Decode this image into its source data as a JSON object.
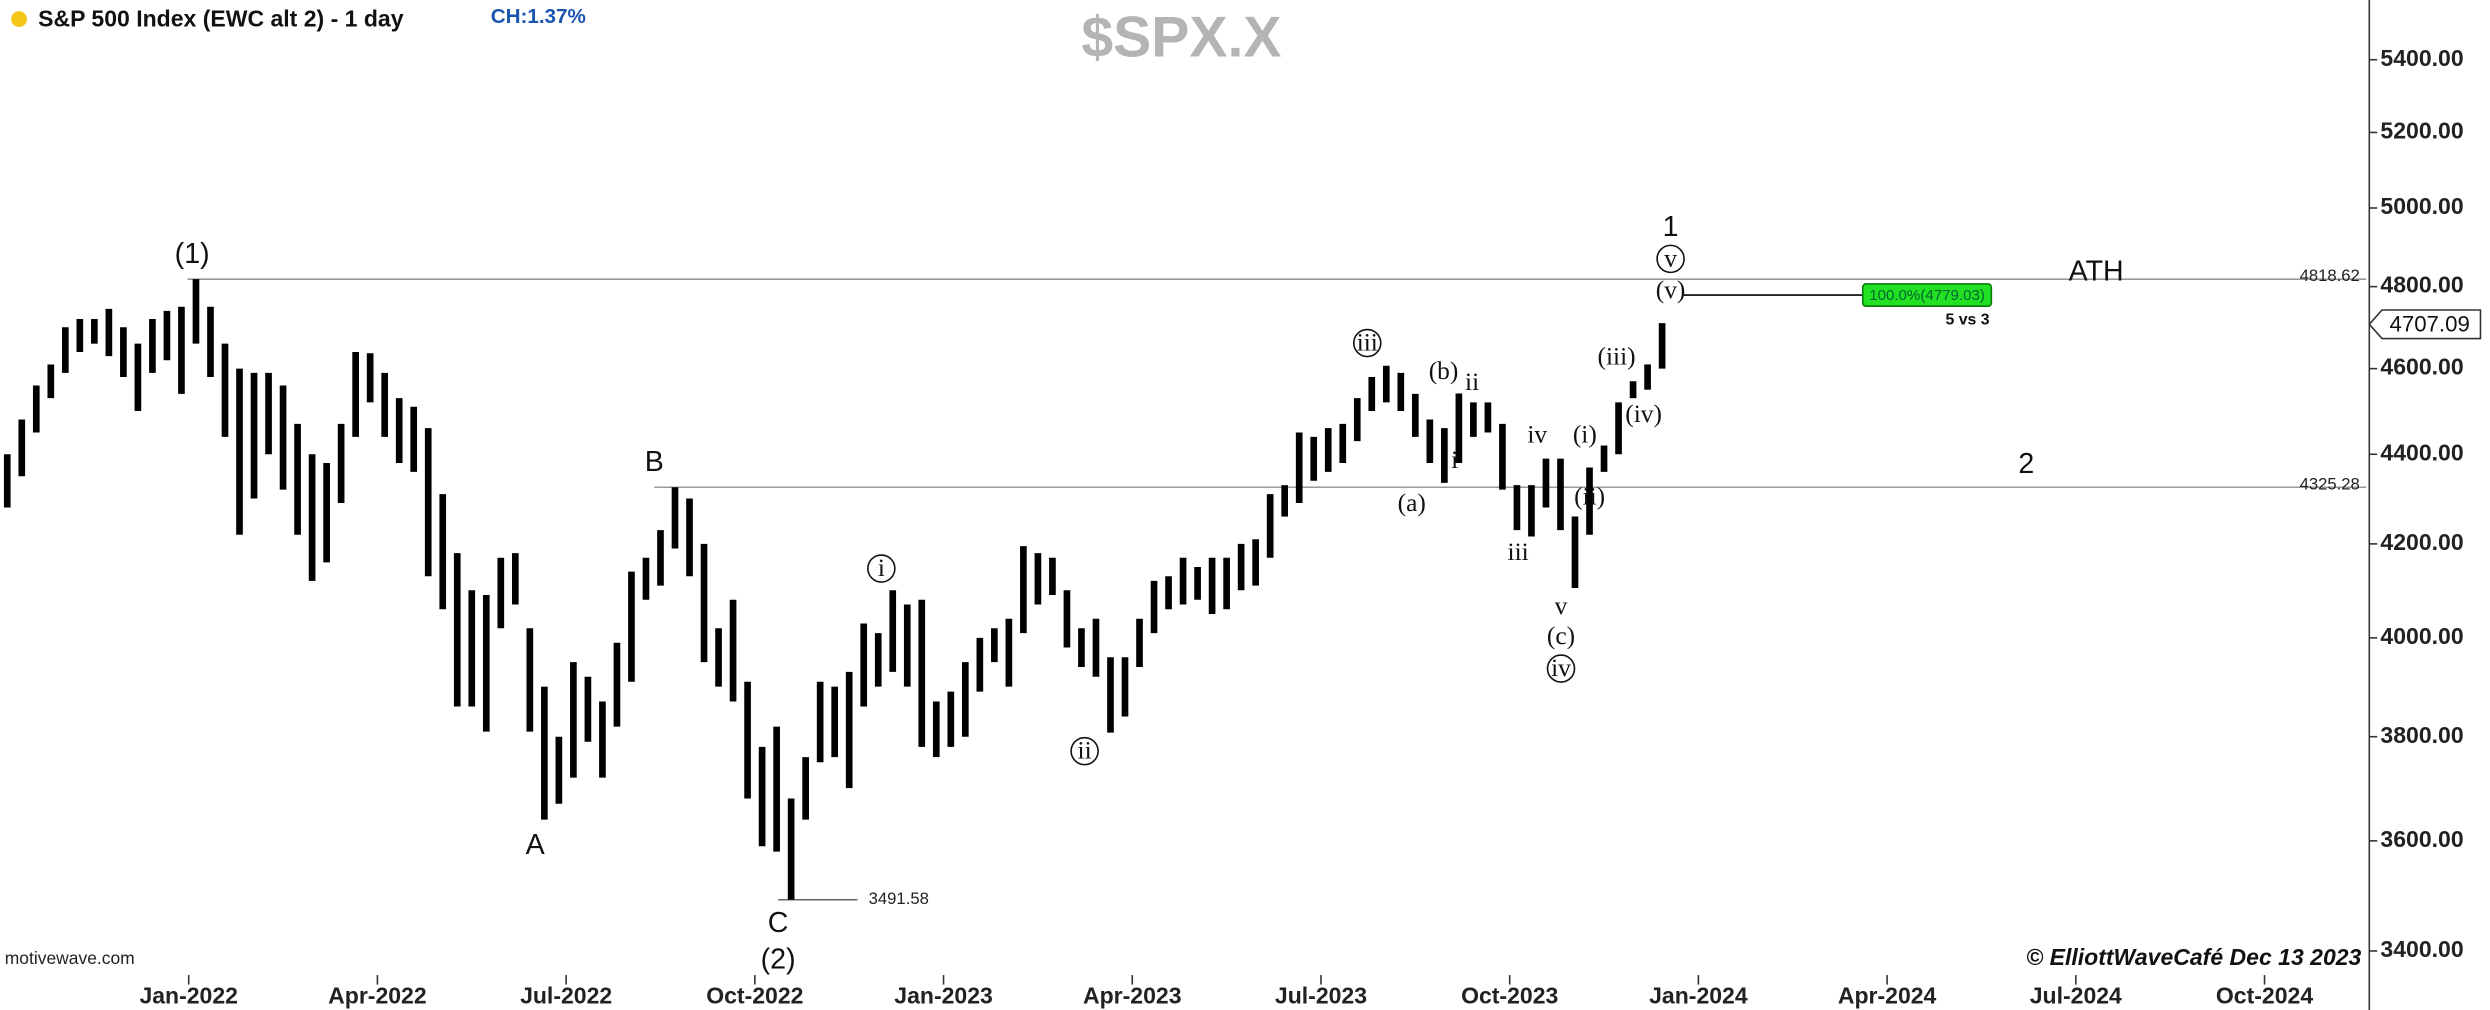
{
  "header": {
    "title": "S&P 500 Index (EWC alt 2) - 1 day",
    "change": "CH:1.37%",
    "symbol": "$SPX.X",
    "source": "motivewave.com",
    "credit": "© ElliottWaveCafé Dec 13 2023"
  },
  "chart_data": {
    "type": "hilo",
    "color": "#000000",
    "log_scale": true,
    "low": [
      4280,
      4350,
      4450,
      4530,
      4590,
      4640,
      4660,
      4630,
      4580,
      4500,
      4590,
      4620,
      4540,
      4660,
      4580,
      4440,
      4220,
      4300,
      4400,
      4320,
      4220,
      4120,
      4160,
      4290,
      4440,
      4520,
      4440,
      4380,
      4360,
      4130,
      4060,
      3860,
      3860,
      3810,
      4020,
      4070,
      3810,
      3640,
      3670,
      3720,
      3790,
      3720,
      3820,
      3910,
      4080,
      4110,
      4190,
      4130,
      3950,
      3900,
      3870,
      3680,
      3590,
      3580,
      3491.58,
      3640,
      3750,
      3760,
      3700,
      3860,
      3900,
      3930,
      3900,
      3780,
      3760,
      3780,
      3800,
      3890,
      3950,
      3900,
      4010,
      4070,
      4090,
      3980,
      3940,
      3920,
      3808,
      3840,
      3940,
      4010,
      4060,
      4070,
      4080,
      4050,
      4060,
      4100,
      4110,
      4170,
      4260,
      4290,
      4340,
      4360,
      4380,
      4430,
      4500,
      4520,
      4500,
      4440,
      4380,
      4335,
      4380,
      4440,
      4450,
      4320,
      4230,
      4216,
      4280,
      4230,
      4105,
      4220,
      4360,
      4400,
      4530,
      4550,
      4600
    ],
    "high": [
      4400,
      4480,
      4560,
      4610,
      4700,
      4720,
      4720,
      4745,
      4700,
      4660,
      4720,
      4740,
      4750,
      4818.62,
      4750,
      4660,
      4600,
      4590,
      4590,
      4560,
      4470,
      4400,
      4380,
      4470,
      4640,
      4637,
      4590,
      4530,
      4510,
      4460,
      4310,
      4180,
      4100,
      4090,
      4170,
      4180,
      4020,
      3900,
      3800,
      3950,
      3920,
      3870,
      3990,
      4140,
      4170,
      4230,
      4325.28,
      4300,
      4200,
      4020,
      4080,
      3910,
      3780,
      3820,
      3680,
      3760,
      3910,
      3900,
      3930,
      4030,
      4010,
      4100,
      4070,
      4080,
      3870,
      3890,
      3950,
      4000,
      4020,
      4040,
      4195,
      4180,
      4170,
      4100,
      4020,
      4040,
      3960,
      3960,
      4040,
      4120,
      4130,
      4170,
      4150,
      4170,
      4170,
      4200,
      4210,
      4310,
      4330,
      4450,
      4440,
      4460,
      4470,
      4530,
      4580,
      4607,
      4590,
      4540,
      4480,
      4460,
      4541,
      4520,
      4520,
      4470,
      4330,
      4330,
      4390,
      4390,
      4260,
      4370,
      4420,
      4520,
      4570,
      4610,
      4710
    ],
    "xlim": [
      0,
      163
    ],
    "xticks": [
      {
        "value": 13,
        "label": "Jan-2022"
      },
      {
        "value": 26,
        "label": "Apr-2022"
      },
      {
        "value": 39,
        "label": "Jul-2022"
      },
      {
        "value": 52,
        "label": "Oct-2022"
      },
      {
        "value": 65,
        "label": "Jan-2023"
      },
      {
        "value": 78,
        "label": "Apr-2023"
      },
      {
        "value": 91,
        "label": "Jul-2023"
      },
      {
        "value": 104,
        "label": "Oct-2023"
      },
      {
        "value": 117,
        "label": "Jan-2024"
      },
      {
        "value": 130,
        "label": "Apr-2024"
      },
      {
        "value": 143,
        "label": "Jul-2024"
      },
      {
        "value": 156,
        "label": "Oct-2024"
      }
    ],
    "ylim": [
      3355,
      5570
    ],
    "yticks": [
      {
        "value": 3400,
        "label": "3400.00"
      },
      {
        "value": 3600,
        "label": "3600.00"
      },
      {
        "value": 3800,
        "label": "3800.00"
      },
      {
        "value": 4000,
        "label": "4000.00"
      },
      {
        "value": 4200,
        "label": "4200.00"
      },
      {
        "value": 4400,
        "label": "4400.00"
      },
      {
        "value": 4600,
        "label": "4600.00"
      },
      {
        "value": 4800,
        "label": "4800.00"
      },
      {
        "value": 5000,
        "label": "5000.00"
      },
      {
        "value": 5200,
        "label": "5200.00"
      },
      {
        "value": 5400,
        "label": "5400.00"
      }
    ],
    "levels": [
      4818.62,
      4325.28,
      3491.58
    ],
    "fib": {
      "value": 4779.03,
      "label": "100.0%(4779.03)",
      "note": "5 vs 3"
    },
    "last_price": 4707.09,
    "annotations": [
      "(1)",
      "B",
      "A",
      "C",
      "(2)",
      "i",
      "ii",
      "iii",
      "(a)",
      "(b)",
      "i",
      "ii",
      "iii",
      "iv",
      "v",
      "(c)",
      "iv",
      "(i)",
      "(ii)",
      "(iii)",
      "(iv)",
      "(v)",
      "v",
      "1",
      "2",
      "ATH"
    ]
  }
}
